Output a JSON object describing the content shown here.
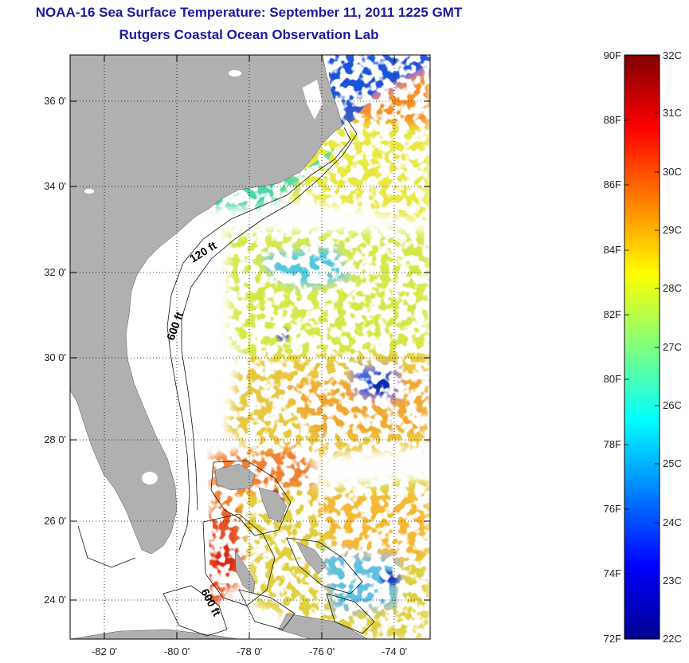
{
  "header": {
    "title": "NOAA-16 Sea Surface Temperature:  September 11, 2011 1225 GMT",
    "subtitle": "Rutgers Coastal Ocean Observation Lab"
  },
  "map": {
    "lat_labels": [
      "36 0'",
      "34 0'",
      "32 0'",
      "30 0'",
      "28 0'",
      "26 0'",
      "24 0'"
    ],
    "lon_labels": [
      "-82 0'",
      "-80 0'",
      "-78 0'",
      "-76 0'",
      "-74 0'"
    ],
    "lat_range": [
      23,
      37.1
    ],
    "lon_range": [
      -83,
      -73
    ],
    "contours": {
      "c120": "120 ft",
      "c600a": "600 ft",
      "c600b": "600 ft"
    },
    "colors": {
      "land": "#b0b0b0",
      "ocean_no_data": "#ffffff",
      "grid": "#000000"
    }
  },
  "colorbar": {
    "f_labels": [
      "90F",
      "88F",
      "86F",
      "84F",
      "82F",
      "80F",
      "78F",
      "76F",
      "74F",
      "72F"
    ],
    "c_labels": [
      "32C",
      "31C",
      "30C",
      "29C",
      "28C",
      "27C",
      "26C",
      "25C",
      "24C",
      "23C",
      "22C"
    ],
    "colormap": "jet",
    "range_c": [
      22,
      32
    ]
  }
}
